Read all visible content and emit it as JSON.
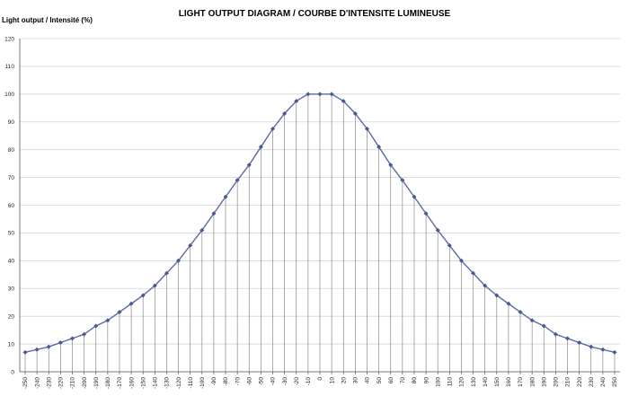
{
  "chart_data": {
    "type": "line",
    "title": "LIGHT OUTPUT DIAGRAM / COURBE D'INTENSITE LUMINEUSE",
    "ylabel": "Light output / Intensité (%)",
    "xlabel": "",
    "ylim": [
      0,
      120
    ],
    "y_ticks": [
      0,
      10,
      20,
      30,
      40,
      50,
      60,
      70,
      80,
      90,
      100,
      110,
      120
    ],
    "grid": {
      "horizontal": true,
      "vertical_drop_lines": true
    },
    "legend": "none",
    "colors": {
      "line": "#5b6aa6",
      "marker": "#4a5894",
      "grid": "#d4d4d4",
      "drop_line": "#8a8a8a",
      "axis": "#555555"
    },
    "x": [
      -250,
      -240,
      -230,
      -220,
      -210,
      -200,
      -190,
      -180,
      -170,
      -160,
      -150,
      -140,
      -130,
      -120,
      -110,
      -100,
      -90,
      -80,
      -70,
      -60,
      -50,
      -40,
      -30,
      -20,
      -10,
      0,
      10,
      20,
      30,
      40,
      50,
      60,
      70,
      80,
      90,
      100,
      110,
      120,
      130,
      140,
      150,
      160,
      170,
      180,
      190,
      200,
      210,
      220,
      230,
      240,
      250
    ],
    "series": [
      {
        "values": [
          7,
          8,
          9,
          10.5,
          12,
          13.5,
          16.5,
          18.5,
          21.5,
          24.5,
          27.5,
          31,
          35.5,
          40,
          45.5,
          51,
          57,
          63,
          69,
          74.5,
          81,
          87.5,
          93,
          97.5,
          100,
          100,
          100,
          97.5,
          93,
          87.5,
          81,
          74.5,
          69,
          63,
          57,
          51,
          45.5,
          40,
          35.5,
          31,
          27.5,
          24.5,
          21.5,
          18.5,
          16.5,
          13.5,
          12,
          10.5,
          9,
          8,
          7
        ]
      }
    ]
  }
}
